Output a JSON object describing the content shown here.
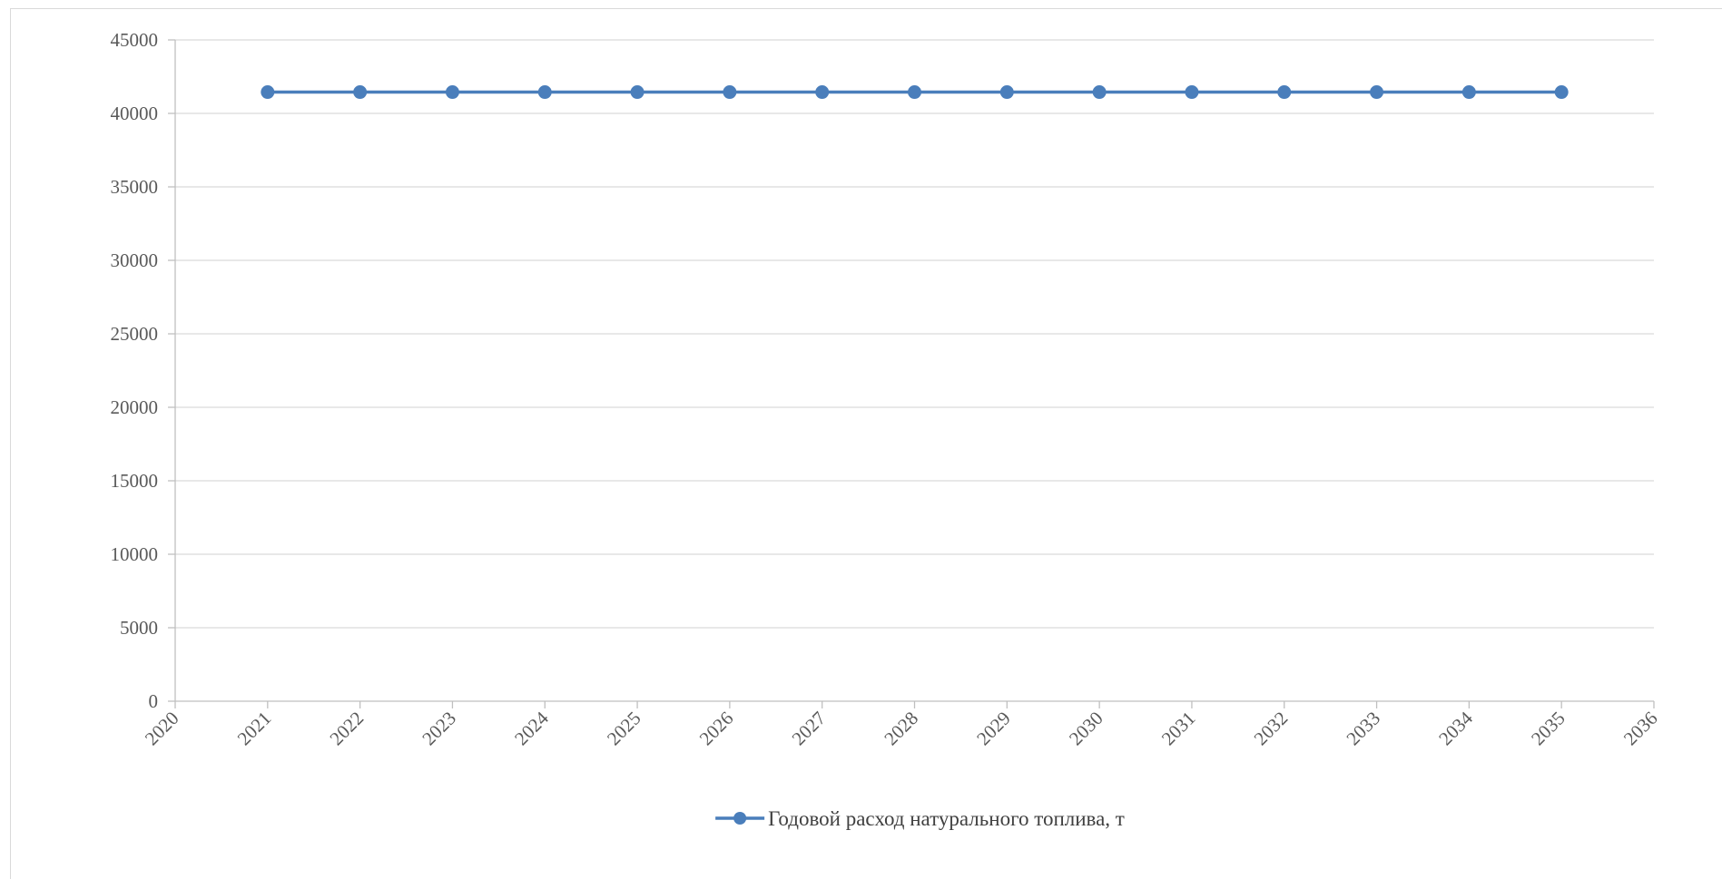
{
  "chart_data": {
    "type": "line",
    "title": "",
    "xlabel": "",
    "ylabel": "",
    "xlim": [
      2020,
      2036
    ],
    "ylim": [
      0,
      45000
    ],
    "x_ticks": [
      2020,
      2021,
      2022,
      2023,
      2024,
      2025,
      2026,
      2027,
      2028,
      2029,
      2030,
      2031,
      2032,
      2033,
      2034,
      2035,
      2036
    ],
    "y_ticks": [
      0,
      5000,
      10000,
      15000,
      20000,
      25000,
      30000,
      35000,
      40000,
      45000
    ],
    "grid": "horizontal",
    "legend_position": "bottom",
    "series": [
      {
        "name": "Годовой расход натурального топлива, т",
        "color": "#4a7ebb",
        "x": [
          2021,
          2022,
          2023,
          2024,
          2025,
          2026,
          2027,
          2028,
          2029,
          2030,
          2031,
          2032,
          2033,
          2034,
          2035
        ],
        "values": [
          41450,
          41450,
          41450,
          41450,
          41450,
          41450,
          41450,
          41450,
          41450,
          41450,
          41450,
          41450,
          41450,
          41450,
          41450
        ]
      }
    ]
  }
}
